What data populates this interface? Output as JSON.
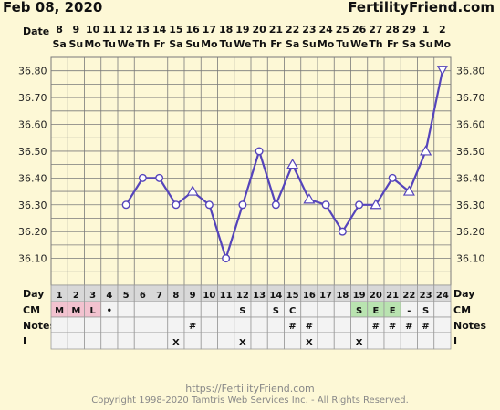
{
  "header": {
    "date": "Feb 08, 2020",
    "brand": "FertilityFriend.com"
  },
  "footer": {
    "url": "https://FertilityFriend.com",
    "copyright": "Copyright 1998-2020 Tamtris Web Services Inc. - All Rights Reserved."
  },
  "row_labels": {
    "date": "Date",
    "day": "Day",
    "cm": "CM",
    "notes": "Notes",
    "i": "I"
  },
  "colors": {
    "line": "#5544bb",
    "grid": "#7a7a7a",
    "plot_bg": "#fdf8d6",
    "table_bg": "#eaeaea",
    "menses": "#f2c2cf",
    "eggwhite": "#b9e3b0",
    "marker": "#ffffff"
  },
  "chart_data": {
    "type": "line",
    "dates": [
      "8",
      "9",
      "10",
      "11",
      "12",
      "13",
      "14",
      "15",
      "16",
      "17",
      "18",
      "19",
      "20",
      "21",
      "22",
      "23",
      "24",
      "25",
      "26",
      "27",
      "28",
      "29",
      "1",
      "2"
    ],
    "weekdays": [
      "Sa",
      "Su",
      "Mo",
      "Tu",
      "We",
      "Th",
      "Fr",
      "Sa",
      "Su",
      "Mo",
      "Tu",
      "We",
      "Th",
      "Fr",
      "Sa",
      "Su",
      "Mo",
      "Tu",
      "We",
      "Th",
      "Fr",
      "Sa",
      "Su",
      "Mo"
    ],
    "days": [
      1,
      2,
      3,
      4,
      5,
      6,
      7,
      8,
      9,
      10,
      11,
      12,
      13,
      14,
      15,
      16,
      17,
      18,
      19,
      20,
      21,
      22,
      23,
      24
    ],
    "temps": [
      null,
      null,
      null,
      null,
      36.3,
      36.4,
      36.4,
      36.3,
      36.35,
      36.3,
      36.1,
      36.3,
      36.5,
      36.3,
      36.45,
      36.32,
      36.3,
      36.2,
      36.3,
      36.3,
      36.4,
      36.35,
      36.5,
      36.8
    ],
    "markers": [
      "",
      "",
      "",
      "",
      "circle",
      "circle",
      "circle",
      "circle",
      "triangle",
      "circle",
      "circle",
      "circle",
      "circle",
      "circle",
      "triangle",
      "triangle",
      "circle",
      "circle",
      "circle",
      "triangle",
      "circle",
      "triangle",
      "triangle",
      "triangle"
    ],
    "yticks": [
      "36.80",
      "36.70",
      "36.60",
      "36.50",
      "36.40",
      "36.30",
      "36.20",
      "36.10"
    ],
    "ylim": [
      36.0,
      36.85
    ],
    "cm": [
      "M",
      "M",
      "L",
      "•",
      "",
      "",
      "",
      "",
      "",
      "",
      "",
      "S",
      "",
      "S",
      "C",
      "",
      "",
      "",
      "S",
      "E",
      "E",
      "-",
      "S",
      ""
    ],
    "cm_colors": [
      "menses",
      "menses",
      "menses",
      "",
      "",
      "",
      "",
      "",
      "",
      "",
      "",
      "",
      "",
      "",
      "",
      "",
      "",
      "",
      "eggwhite",
      "eggwhite",
      "eggwhite",
      "",
      "",
      ""
    ],
    "notes": [
      "",
      "",
      "",
      "",
      "",
      "",
      "",
      "",
      "#",
      "",
      "",
      "",
      "",
      "",
      "#",
      "#",
      "",
      "",
      "",
      "#",
      "#",
      "#",
      "#",
      ""
    ],
    "intercourse": [
      "",
      "",
      "",
      "",
      "",
      "",
      "",
      "X",
      "",
      "",
      "",
      "X",
      "",
      "",
      "",
      "X",
      "",
      "",
      "X",
      "",
      "",
      "",
      "",
      ""
    ],
    "grid": true
  }
}
